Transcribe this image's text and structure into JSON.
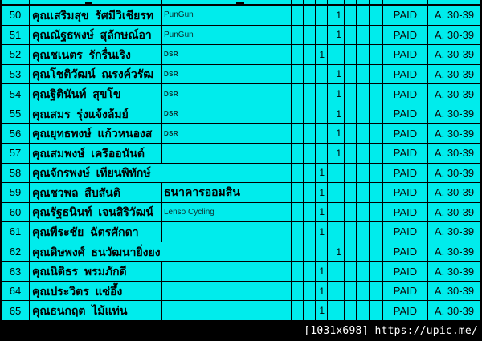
{
  "colors": {
    "cell_background": "#00ECEC",
    "grid_line": "#000000",
    "footer_background": "#000000",
    "footer_text": "#FFFFFF"
  },
  "table": {
    "mark_value": "1",
    "rows": [
      {
        "no": "50",
        "name": "คุณเสริมสุข  รัศมีวิเชียรท",
        "team": "PunGun",
        "team_style": "small",
        "merged": false,
        "mark_col": 4,
        "mark": "1",
        "status": "PAID",
        "category": "A. 30-39"
      },
      {
        "no": "51",
        "name": "คุณณัฐธพงษ์  สุลักษณ์อา",
        "team": "PunGun",
        "team_style": "small",
        "merged": false,
        "mark_col": 4,
        "mark": "1",
        "status": "PAID",
        "category": "A. 30-39"
      },
      {
        "no": "52",
        "name": "คุณชเนตร  รักรื่นเริง",
        "team": "DSR",
        "team_style": "tiny",
        "merged": false,
        "mark_col": 3,
        "mark": "1",
        "status": "PAID",
        "category": "A. 30-39"
      },
      {
        "no": "53",
        "name": "คุณโชติวัฒน์  ณรงค์วรัฒ",
        "team": "DSR",
        "team_style": "tiny",
        "merged": false,
        "mark_col": 4,
        "mark": "1",
        "status": "PAID",
        "category": "A. 30-39"
      },
      {
        "no": "54",
        "name": "คุณฐิตินันท์  สุขโข",
        "team": "DSR",
        "team_style": "tiny",
        "merged": false,
        "mark_col": 4,
        "mark": "1",
        "status": "PAID",
        "category": "A. 30-39"
      },
      {
        "no": "55",
        "name": "คุณสมร  รุ่งแจ้งล้มย์",
        "team": "DSR",
        "team_style": "tiny",
        "merged": false,
        "mark_col": 4,
        "mark": "1",
        "status": "PAID",
        "category": "A. 30-39"
      },
      {
        "no": "56",
        "name": "คุณยุทธพงษ์  แก้วหนองส",
        "team": "DSR",
        "team_style": "tiny",
        "merged": false,
        "mark_col": 4,
        "mark": "1",
        "status": "PAID",
        "category": "A. 30-39"
      },
      {
        "no": "57",
        "name": "คุณสมพงษ์  เครืออนันต์",
        "team": "",
        "team_style": "",
        "merged": false,
        "mark_col": 4,
        "mark": "1",
        "status": "PAID",
        "category": "A. 30-39"
      },
      {
        "no": "58",
        "name": "คุณจักรพงษ์  เทียนพิทักษ์",
        "team": "",
        "team_style": "",
        "merged": true,
        "mark_col": 3,
        "mark": "1",
        "status": "PAID",
        "category": "A. 30-39"
      },
      {
        "no": "59",
        "name": "คุณชวพล  สืบสันติ",
        "team": "ธนาคารออมสิน",
        "team_style": "bold",
        "merged": false,
        "mark_col": 3,
        "mark": "1",
        "status": "PAID",
        "category": "A. 30-39"
      },
      {
        "no": "60",
        "name": "คุณรัฐธนินท์  เจนสิริวัฒน์",
        "team": "Lenso Cycling",
        "team_style": "small",
        "merged": false,
        "mark_col": 3,
        "mark": "1",
        "status": "PAID",
        "category": "A. 30-39"
      },
      {
        "no": "61",
        "name": "คุณพีระชัย  ฉัตรศักดา",
        "team": "",
        "team_style": "",
        "merged": false,
        "mark_col": 3,
        "mark": "1",
        "status": "PAID",
        "category": "A. 30-39"
      },
      {
        "no": "62",
        "name": "คุณดิษพงศ์  ธนวัฒนายิ่งยง",
        "team": "",
        "team_style": "",
        "merged": true,
        "mark_col": 4,
        "mark": "1",
        "status": "PAID",
        "category": "A. 30-39"
      },
      {
        "no": "63",
        "name": "คุณนิติธร  พรมภักดี",
        "team": "",
        "team_style": "",
        "merged": false,
        "mark_col": 3,
        "mark": "1",
        "status": "PAID",
        "category": "A. 30-39"
      },
      {
        "no": "64",
        "name": "คุณประวิตร  แซ่อึ้ง",
        "team": "",
        "team_style": "",
        "merged": false,
        "mark_col": 3,
        "mark": "1",
        "status": "PAID",
        "category": "A. 30-39"
      },
      {
        "no": "65",
        "name": "คุณธนกฤต  ไม้แท่น",
        "team": "",
        "team_style": "",
        "merged": false,
        "mark_col": 3,
        "mark": "1",
        "status": "PAID",
        "category": "A. 30-39"
      }
    ]
  },
  "footer": {
    "watermark": "[1031x698] https://upic.me/"
  }
}
